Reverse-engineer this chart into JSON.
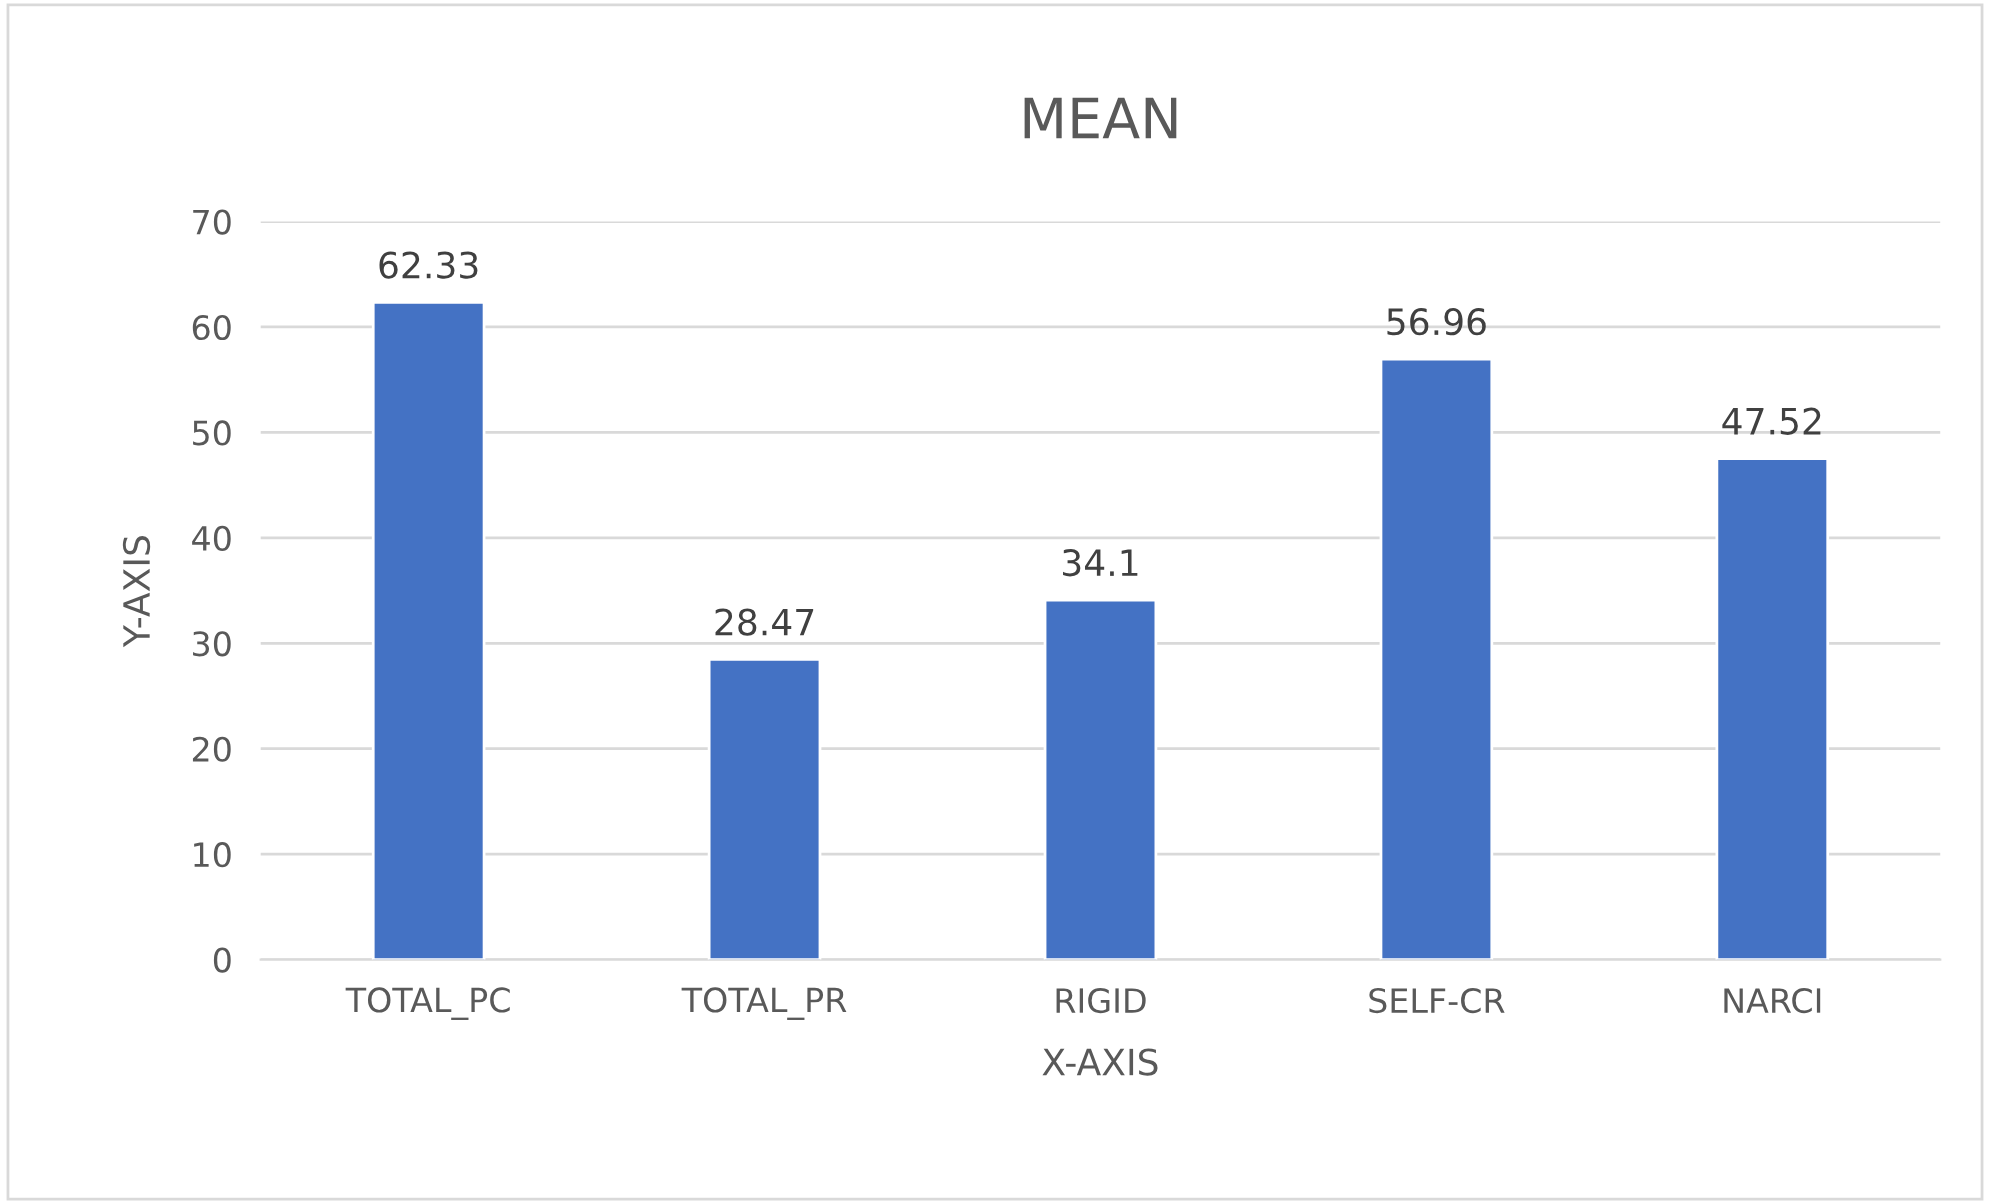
{
  "chart_data": {
    "type": "bar",
    "title": "MEAN",
    "xlabel": "X-AXIS",
    "ylabel": "Y-AXIS",
    "categories": [
      "TOTAL_PC",
      "TOTAL_PR",
      "RIGID",
      "SELF-CR",
      "NARCI"
    ],
    "values": [
      62.33,
      28.47,
      34.1,
      56.96,
      47.52
    ],
    "color": "#4472c4",
    "ylim": [
      0,
      70
    ],
    "yticks": [
      0,
      10,
      20,
      30,
      40,
      50,
      60,
      70
    ],
    "grid": "y",
    "data_labels": true
  }
}
